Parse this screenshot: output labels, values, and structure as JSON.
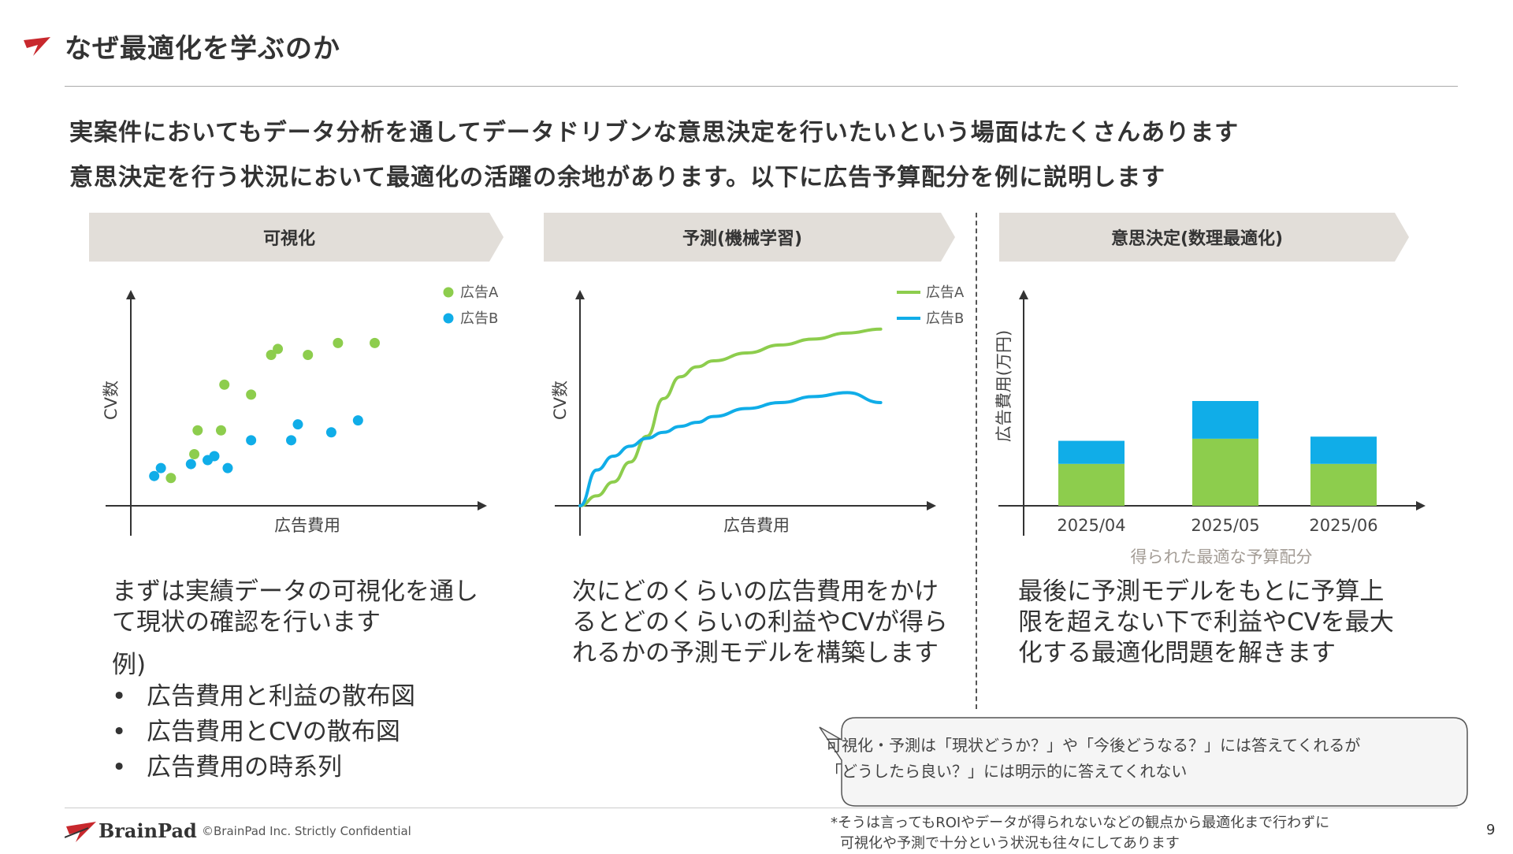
{
  "header": {
    "title": "なぜ最適化を学ぶのか",
    "lead_1": "実案件においてもデータ分析を通してデータドリブンな意思決定を行いたいという場面はたくさんあります",
    "lead_2": "意思決定を行う状況において最適化の活躍の余地があります。以下に広告予算配分を例に説明します"
  },
  "colors": {
    "accent_red": "#c8282d",
    "series_a": "#8dcd4d",
    "series_b": "#10ade8",
    "chevron_fill": "#e2ded9",
    "subcaption": "#a39c95"
  },
  "columns": [
    {
      "heading": "可視化",
      "description": "まずは実績データの可視化を通して現状の確認を行います",
      "example_label": "例)",
      "bullets": [
        "広告費用と利益の散布図",
        "広告費用とCVの散布図",
        "広告費用の時系列"
      ]
    },
    {
      "heading": "予測(機械学習)",
      "description": "次にどのくらいの広告費用をかけるとどのくらいの利益やCVが得られるかの予測モデルを構築します"
    },
    {
      "heading": "意思決定(数理最適化)",
      "description": "最後に予測モデルをもとに予算上限を超えない下で利益やCVを最大化する最適化問題を解きます"
    }
  ],
  "chart_data": [
    {
      "type": "scatter",
      "xlabel": "広告費用",
      "ylabel": "CV数",
      "xlim": [
        0,
        100
      ],
      "ylim": [
        0,
        100
      ],
      "grid": false,
      "legend_position": "top-right",
      "series": [
        {
          "name": "広告A",
          "color": "#8dcd4d",
          "x": [
            12,
            19,
            20,
            27,
            28,
            36,
            42,
            44,
            53,
            62,
            73
          ],
          "y": [
            14,
            26,
            38,
            38,
            61,
            56,
            76,
            79,
            76,
            82,
            82
          ]
        },
        {
          "name": "広告B",
          "color": "#10ade8",
          "x": [
            7,
            9,
            18,
            23,
            25,
            29,
            36,
            48,
            50,
            60,
            68
          ],
          "y": [
            15,
            19,
            21,
            23,
            25,
            19,
            33,
            33,
            41,
            37,
            43
          ]
        }
      ]
    },
    {
      "type": "line",
      "xlabel": "広告費用",
      "ylabel": "CV数",
      "xlim": [
        0,
        100
      ],
      "ylim": [
        0,
        100
      ],
      "grid": false,
      "legend_position": "top-right",
      "series": [
        {
          "name": "広告A",
          "color": "#8dcd4d",
          "x": [
            0,
            5,
            10,
            15,
            20,
            25,
            30,
            35,
            40,
            50,
            60,
            70,
            80,
            90
          ],
          "y": [
            0,
            5,
            12,
            22,
            35,
            54,
            65,
            70,
            73,
            77,
            81,
            84,
            87,
            89
          ]
        },
        {
          "name": "広告B",
          "color": "#10ade8",
          "x": [
            0,
            5,
            10,
            15,
            20,
            25,
            30,
            35,
            40,
            50,
            60,
            70,
            80,
            90
          ],
          "y": [
            0,
            18,
            25,
            30,
            34,
            37,
            40,
            42,
            45,
            49,
            52,
            55,
            57,
            52
          ]
        }
      ]
    },
    {
      "type": "bar",
      "stacked": true,
      "ylabel": "広告費用(万円)",
      "subtitle": "得られた最適な予算配分",
      "categories": [
        "2025/04",
        "2025/05",
        "2025/06"
      ],
      "ylim": [
        0,
        100
      ],
      "grid": false,
      "series": [
        {
          "name": "広告A",
          "color": "#8dcd4d",
          "values": [
            20,
            32,
            20
          ]
        },
        {
          "name": "広告B",
          "color": "#10ade8",
          "values": [
            11,
            18,
            13
          ]
        }
      ]
    }
  ],
  "callout": {
    "line_1": "可視化・予測は「現状どうか？」や「今後どうなる？」には答えてくれるが",
    "line_2": "「どうしたら良い？」には明示的に答えてくれない"
  },
  "footer": {
    "brand": "BrainPad",
    "copyright": "©BrainPad Inc.  Strictly Confidential",
    "footnote_1": "*そうは言ってもROIやデータが得られないなどの観点から最適化まで行わずに",
    "footnote_2": "可視化や予測で十分という状況も往々にしてあります",
    "page_number": "9"
  }
}
